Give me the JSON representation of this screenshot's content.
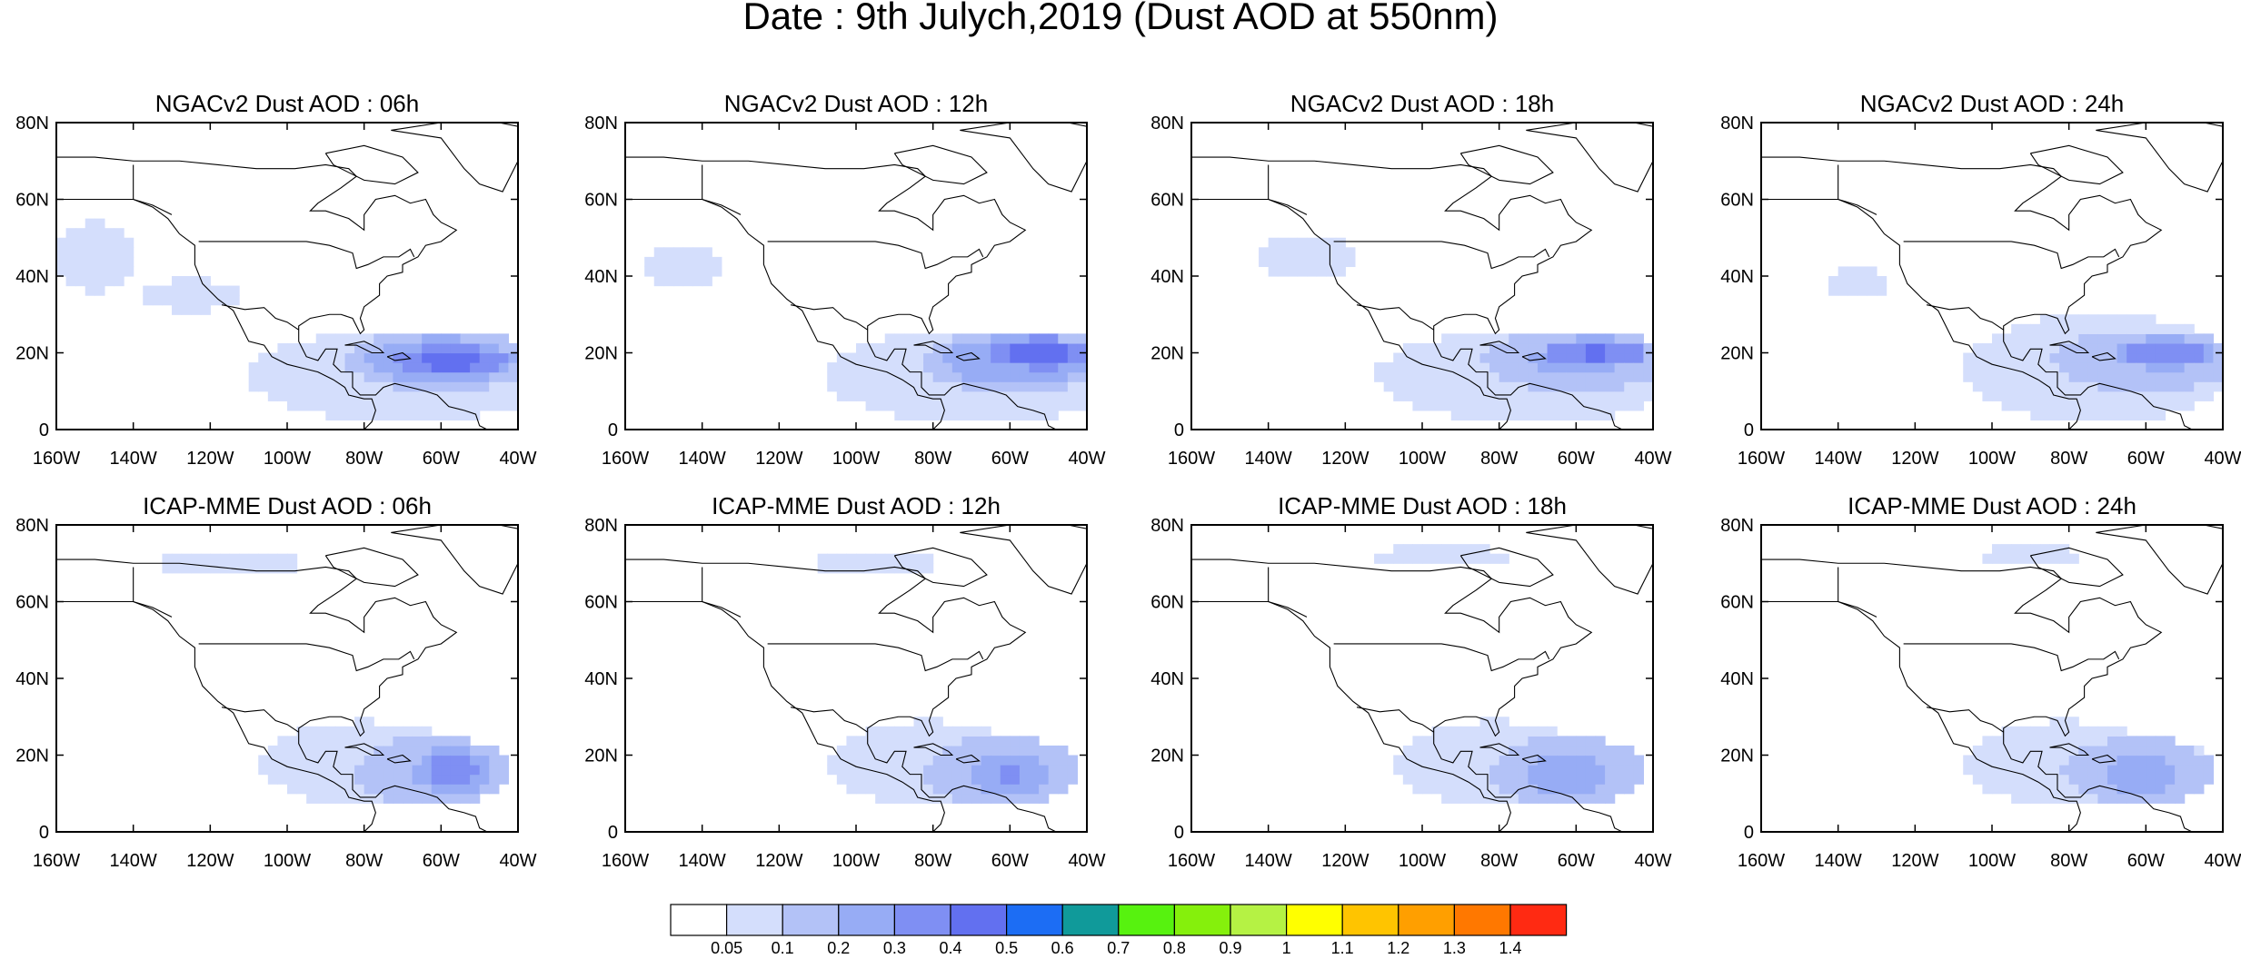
{
  "title": "Date : 9th Julych,2019 (Dust AOD at 550nm)",
  "map_extent": {
    "lon": [
      -160,
      -40
    ],
    "lat": [
      0,
      80
    ]
  },
  "lon_ticks": [
    {
      "value": -160,
      "label": "160W"
    },
    {
      "value": -140,
      "label": "140W"
    },
    {
      "value": -120,
      "label": "120W"
    },
    {
      "value": -100,
      "label": "100W"
    },
    {
      "value": -80,
      "label": "80W"
    },
    {
      "value": -60,
      "label": "60W"
    },
    {
      "value": -40,
      "label": "40W"
    }
  ],
  "lat_ticks": [
    {
      "value": 0,
      "label": "0"
    },
    {
      "value": 20,
      "label": "20N"
    },
    {
      "value": 40,
      "label": "40N"
    },
    {
      "value": 60,
      "label": "60N"
    },
    {
      "value": 80,
      "label": "80N"
    }
  ],
  "panels": [
    {
      "id": "ngac-06",
      "title": "NGACv2 Dust AOD : 06h",
      "plumes": [
        {
          "center": [
            -57,
            18
          ],
          "radius": [
            15,
            4
          ],
          "level": 0.45
        },
        {
          "center": [
            -60,
            18
          ],
          "radius": [
            25,
            8
          ],
          "level": 0.25
        },
        {
          "center": [
            -70,
            14
          ],
          "radius": [
            40,
            12
          ],
          "level": 0.08
        },
        {
          "center": [
            -150,
            45
          ],
          "radius": [
            12,
            10
          ],
          "level": 0.07
        },
        {
          "center": [
            -125,
            35
          ],
          "radius": [
            20,
            6
          ],
          "level": 0.06
        }
      ]
    },
    {
      "id": "ngac-12",
      "title": "NGACv2 Dust AOD : 12h",
      "plumes": [
        {
          "center": [
            -52,
            20
          ],
          "radius": [
            15,
            4
          ],
          "level": 0.45
        },
        {
          "center": [
            -58,
            18
          ],
          "radius": [
            25,
            8
          ],
          "level": 0.25
        },
        {
          "center": [
            -68,
            14
          ],
          "radius": [
            40,
            12
          ],
          "level": 0.08
        },
        {
          "center": [
            -145,
            42
          ],
          "radius": [
            15,
            8
          ],
          "level": 0.06
        }
      ]
    },
    {
      "id": "ngac-18",
      "title": "NGACv2 Dust AOD : 18h",
      "plumes": [
        {
          "center": [
            -55,
            20
          ],
          "radius": [
            14,
            4
          ],
          "level": 0.42
        },
        {
          "center": [
            -60,
            18
          ],
          "radius": [
            24,
            8
          ],
          "level": 0.22
        },
        {
          "center": [
            -72,
            14
          ],
          "radius": [
            40,
            12
          ],
          "level": 0.08
        },
        {
          "center": [
            -130,
            45
          ],
          "radius": [
            20,
            8
          ],
          "level": 0.06
        }
      ]
    },
    {
      "id": "ngac-24",
      "title": "NGACv2 Dust AOD : 24h",
      "plumes": [
        {
          "center": [
            -55,
            20
          ],
          "radius": [
            14,
            4
          ],
          "level": 0.38
        },
        {
          "center": [
            -60,
            18
          ],
          "radius": [
            24,
            8
          ],
          "level": 0.2
        },
        {
          "center": [
            -72,
            16
          ],
          "radius": [
            35,
            14
          ],
          "level": 0.08
        },
        {
          "center": [
            -135,
            38
          ],
          "radius": [
            12,
            6
          ],
          "level": 0.06
        }
      ]
    },
    {
      "id": "icap-06",
      "title": "ICAP-MME Dust AOD : 06h",
      "plumes": [
        {
          "center": [
            -57,
            16
          ],
          "radius": [
            10,
            6
          ],
          "level": 0.35
        },
        {
          "center": [
            -62,
            16
          ],
          "radius": [
            20,
            9
          ],
          "level": 0.18
        },
        {
          "center": [
            -80,
            18
          ],
          "radius": [
            30,
            12
          ],
          "level": 0.07
        },
        {
          "center": [
            -115,
            70
          ],
          "radius": [
            30,
            4
          ],
          "level": 0.06
        }
      ]
    },
    {
      "id": "icap-12",
      "title": "ICAP-MME Dust AOD : 12h",
      "plumes": [
        {
          "center": [
            -60,
            15
          ],
          "radius": [
            10,
            6
          ],
          "level": 0.32
        },
        {
          "center": [
            -62,
            16
          ],
          "radius": [
            20,
            9
          ],
          "level": 0.17
        },
        {
          "center": [
            -82,
            18
          ],
          "radius": [
            28,
            12
          ],
          "level": 0.07
        },
        {
          "center": [
            -95,
            70
          ],
          "radius": [
            25,
            4
          ],
          "level": 0.06
        }
      ]
    },
    {
      "id": "icap-18",
      "title": "ICAP-MME Dust AOD : 18h",
      "plumes": [
        {
          "center": [
            -62,
            15
          ],
          "radius": [
            10,
            6
          ],
          "level": 0.3
        },
        {
          "center": [
            -62,
            16
          ],
          "radius": [
            20,
            9
          ],
          "level": 0.16
        },
        {
          "center": [
            -82,
            18
          ],
          "radius": [
            28,
            12
          ],
          "level": 0.07
        },
        {
          "center": [
            -95,
            72
          ],
          "radius": [
            25,
            4
          ],
          "level": 0.06
        }
      ]
    },
    {
      "id": "icap-24",
      "title": "ICAP-MME Dust AOD : 24h",
      "plumes": [
        {
          "center": [
            -62,
            15
          ],
          "radius": [
            10,
            6
          ],
          "level": 0.28
        },
        {
          "center": [
            -62,
            16
          ],
          "radius": [
            20,
            9
          ],
          "level": 0.15
        },
        {
          "center": [
            -82,
            18
          ],
          "radius": [
            28,
            12
          ],
          "level": 0.07
        },
        {
          "center": [
            -90,
            72
          ],
          "radius": [
            20,
            4
          ],
          "level": 0.06
        }
      ]
    }
  ],
  "colorbar": {
    "colors": [
      "#ffffff",
      "#d4defc",
      "#b3c2f7",
      "#97acf5",
      "#7f8ff3",
      "#6270f0",
      "#1c6df4",
      "#109a9a",
      "#57f20f",
      "#85f00c",
      "#b5f244",
      "#ffff00",
      "#ffc400",
      "#ff9f00",
      "#ff7800",
      "#ff2a12"
    ],
    "labels": [
      "0.05",
      "0.1",
      "0.2",
      "0.3",
      "0.4",
      "0.5",
      "0.6",
      "0.7",
      "0.8",
      "0.9",
      "1",
      "1.1",
      "1.2",
      "1.3",
      "1.4"
    ]
  }
}
